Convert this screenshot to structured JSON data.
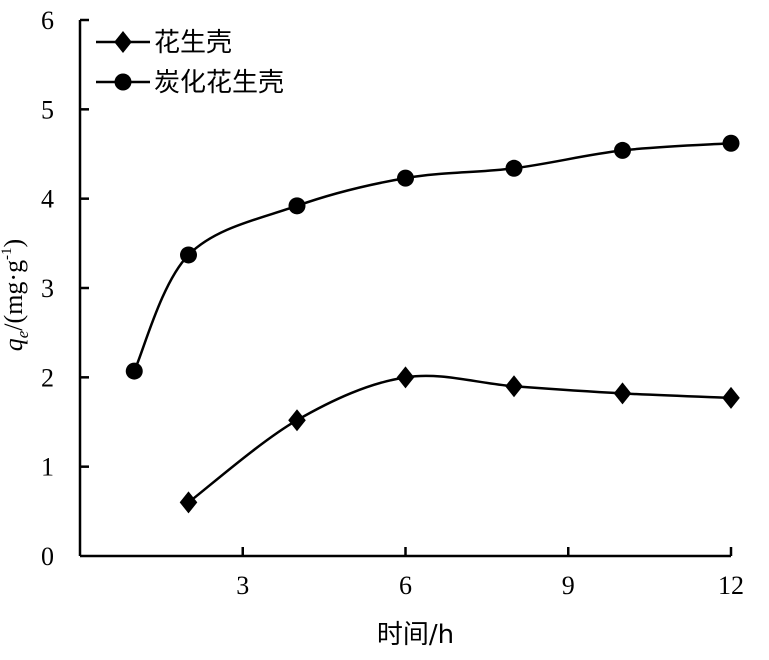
{
  "chart_data": {
    "type": "line",
    "xlabel": "时间/h",
    "ylabel": {
      "q": "q",
      "sub": "e",
      "unit": "/(mg·g",
      "sup": "-1",
      "close": ")"
    },
    "xlim": [
      0,
      12
    ],
    "ylim": [
      0,
      6
    ],
    "xticks": [
      3,
      6,
      9,
      12
    ],
    "yticks": [
      0,
      1,
      2,
      3,
      4,
      5,
      6
    ],
    "grid": false,
    "legend_position": "top-left",
    "series": [
      {
        "name": "花生壳",
        "marker": "diamond",
        "x": [
          2,
          4,
          6,
          8,
          10,
          12
        ],
        "y": [
          0.6,
          1.52,
          2.0,
          1.9,
          1.82,
          1.77
        ]
      },
      {
        "name": "炭化花生壳",
        "marker": "circle",
        "x": [
          1,
          2,
          4,
          6,
          8,
          10,
          12
        ],
        "y": [
          2.07,
          3.37,
          3.92,
          4.23,
          4.34,
          4.54,
          4.62
        ]
      }
    ]
  }
}
